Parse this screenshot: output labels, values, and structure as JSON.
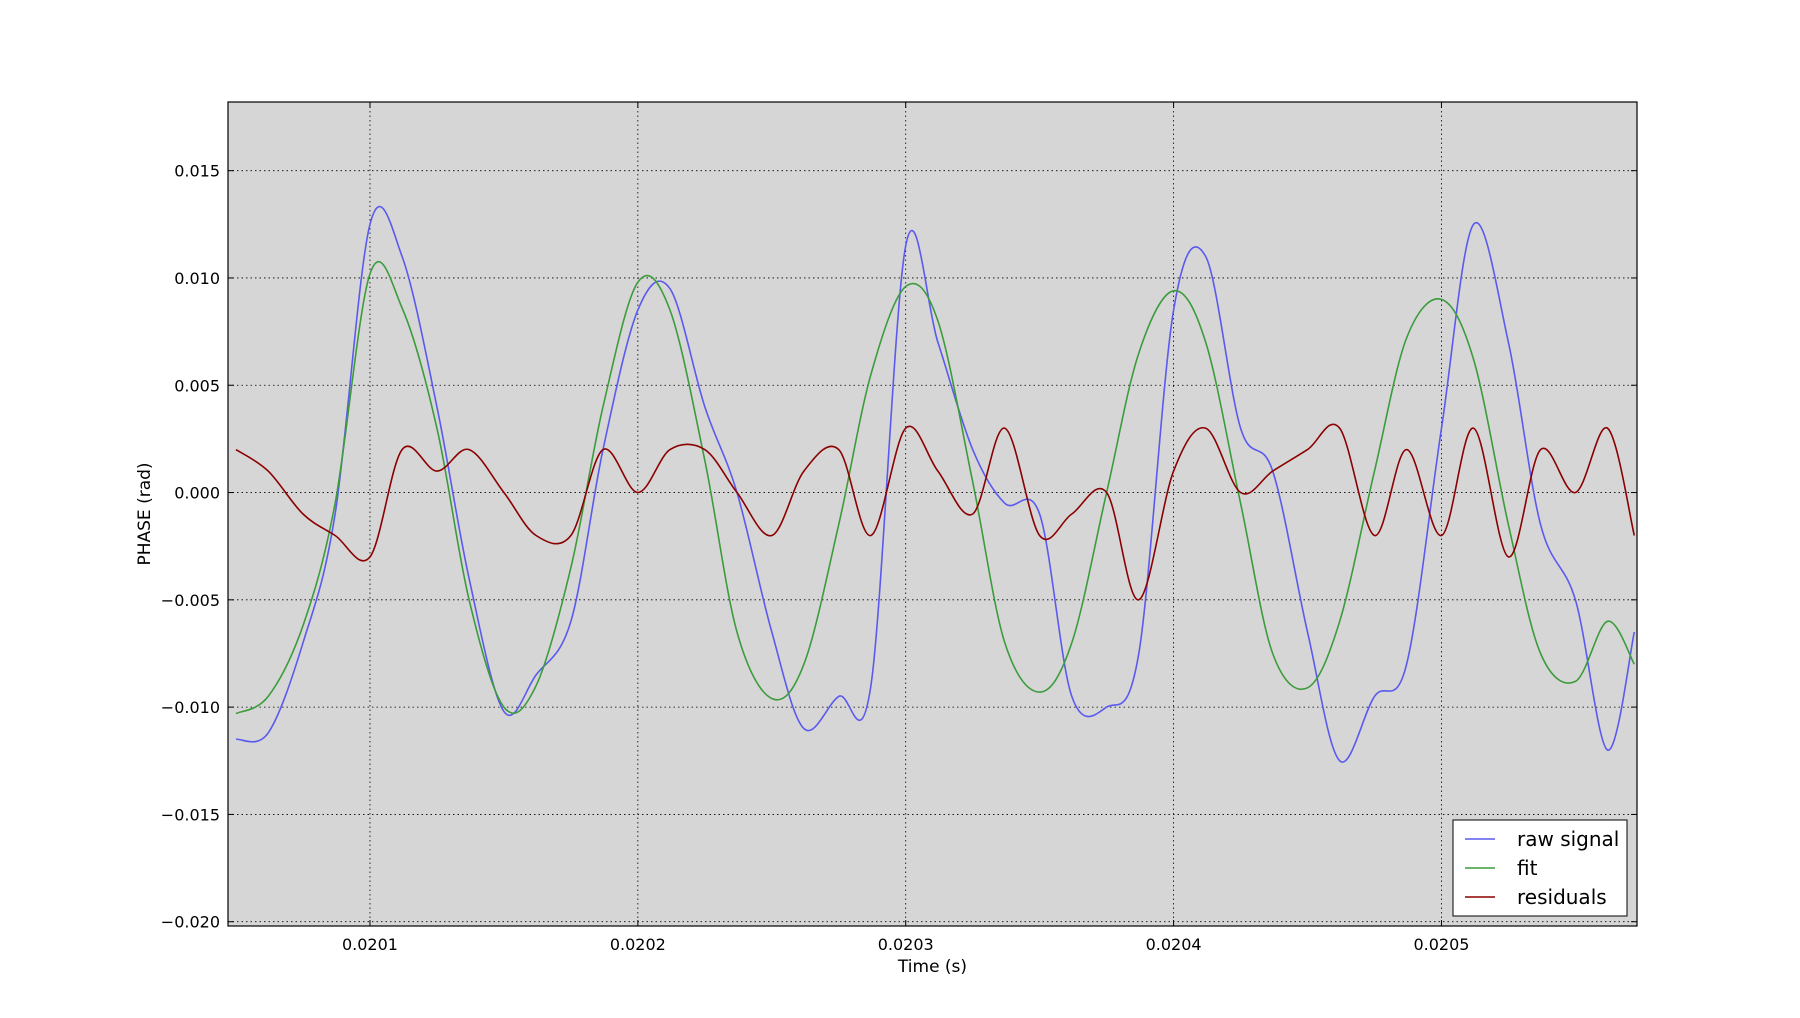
{
  "chart_data": {
    "type": "line",
    "title": "",
    "xlabel": "Time (s)",
    "ylabel": "PHASE (rad)",
    "xlim": [
      0.020047,
      0.020573
    ],
    "ylim": [
      -0.0202,
      0.0182
    ],
    "xticks": [
      0.0201,
      0.0202,
      0.0203,
      0.0204,
      0.0205
    ],
    "xtick_labels": [
      "0.0201",
      "0.0202",
      "0.0203",
      "0.0204",
      "0.0205"
    ],
    "yticks": [
      -0.02,
      -0.015,
      -0.01,
      -0.005,
      0.0,
      0.005,
      0.01,
      0.015
    ],
    "ytick_labels": [
      "−0.020",
      "−0.015",
      "−0.010",
      "−0.005",
      "0.000",
      "0.005",
      "0.010",
      "0.015"
    ],
    "grid": true,
    "legend_position": "lower-right",
    "plot_background": "#d6d6d6",
    "series": [
      {
        "name": "raw signal",
        "color": "#5a5af0",
        "x": [
          0.02005,
          0.020062,
          0.020075,
          0.020087,
          0.0201,
          0.020112,
          0.020125,
          0.020137,
          0.02015,
          0.020162,
          0.020175,
          0.020187,
          0.0202,
          0.020212,
          0.020225,
          0.020237,
          0.02025,
          0.020262,
          0.020275,
          0.020287,
          0.0203,
          0.020312,
          0.020325,
          0.020337,
          0.02035,
          0.020362,
          0.020375,
          0.020387,
          0.0204,
          0.020412,
          0.020425,
          0.020437,
          0.02045,
          0.020462,
          0.020475,
          0.020487,
          0.0205,
          0.020512,
          0.020525,
          0.020537,
          0.02055,
          0.020562,
          0.020572
        ],
        "y": [
          -0.0115,
          -0.0112,
          -0.007,
          -0.001,
          0.0125,
          0.011,
          0.004,
          -0.004,
          -0.0102,
          -0.0085,
          -0.006,
          0.002,
          0.0085,
          0.0095,
          0.004,
          0.0,
          -0.0065,
          -0.011,
          -0.0095,
          -0.009,
          0.0115,
          0.007,
          0.002,
          -0.0005,
          -0.001,
          -0.0095,
          -0.01,
          -0.0075,
          0.0085,
          0.011,
          0.003,
          0.001,
          -0.0065,
          -0.0125,
          -0.0095,
          -0.008,
          0.003,
          0.0125,
          0.007,
          -0.0015,
          -0.005,
          -0.012,
          -0.0065
        ]
      },
      {
        "name": "fit",
        "color": "#3c9c3c",
        "x": [
          0.02005,
          0.020062,
          0.020075,
          0.020087,
          0.0201,
          0.020112,
          0.020125,
          0.020137,
          0.02015,
          0.020162,
          0.020175,
          0.020187,
          0.0202,
          0.020212,
          0.020225,
          0.020237,
          0.02025,
          0.020262,
          0.020275,
          0.020287,
          0.0203,
          0.020312,
          0.020325,
          0.020337,
          0.02035,
          0.020362,
          0.020375,
          0.020387,
          0.0204,
          0.020412,
          0.020425,
          0.020437,
          0.02045,
          0.020462,
          0.020475,
          0.020487,
          0.0205,
          0.020512,
          0.020525,
          0.020537,
          0.02055,
          0.020562,
          0.020572
        ],
        "y": [
          -0.0103,
          -0.0095,
          -0.0062,
          -0.0005,
          0.0102,
          0.0086,
          0.003,
          -0.005,
          -0.01,
          -0.009,
          -0.0035,
          0.004,
          0.0098,
          0.0085,
          0.0015,
          -0.0065,
          -0.0096,
          -0.008,
          -0.0015,
          0.0055,
          0.0096,
          0.008,
          0.0005,
          -0.007,
          -0.0093,
          -0.007,
          0.0,
          0.0065,
          0.0094,
          0.007,
          -0.0005,
          -0.0075,
          -0.0091,
          -0.006,
          0.001,
          0.0072,
          0.009,
          0.0062,
          -0.0015,
          -0.0075,
          -0.0088,
          -0.006,
          -0.008
        ]
      },
      {
        "name": "residuals",
        "color": "#8b0000",
        "x": [
          0.02005,
          0.020062,
          0.020075,
          0.020087,
          0.0201,
          0.020112,
          0.020125,
          0.020137,
          0.02015,
          0.020162,
          0.020175,
          0.020187,
          0.0202,
          0.020212,
          0.020225,
          0.020237,
          0.02025,
          0.020262,
          0.020275,
          0.020287,
          0.0203,
          0.020312,
          0.020325,
          0.020337,
          0.02035,
          0.020362,
          0.020375,
          0.020387,
          0.0204,
          0.020412,
          0.020425,
          0.020437,
          0.02045,
          0.020462,
          0.020475,
          0.020487,
          0.0205,
          0.020512,
          0.020525,
          0.020537,
          0.02055,
          0.020562,
          0.020572
        ],
        "y": [
          0.002,
          0.001,
          -0.001,
          -0.002,
          -0.003,
          0.002,
          0.001,
          0.002,
          0.0,
          -0.002,
          -0.002,
          0.002,
          0.0,
          0.002,
          0.002,
          0.0,
          -0.002,
          0.001,
          0.002,
          -0.002,
          0.003,
          0.001,
          -0.001,
          0.003,
          -0.002,
          -0.001,
          0.0,
          -0.005,
          0.001,
          0.003,
          0.0,
          0.001,
          0.002,
          0.003,
          -0.002,
          0.002,
          -0.002,
          0.003,
          -0.003,
          0.002,
          0.0,
          0.003,
          -0.002
        ]
      }
    ]
  }
}
